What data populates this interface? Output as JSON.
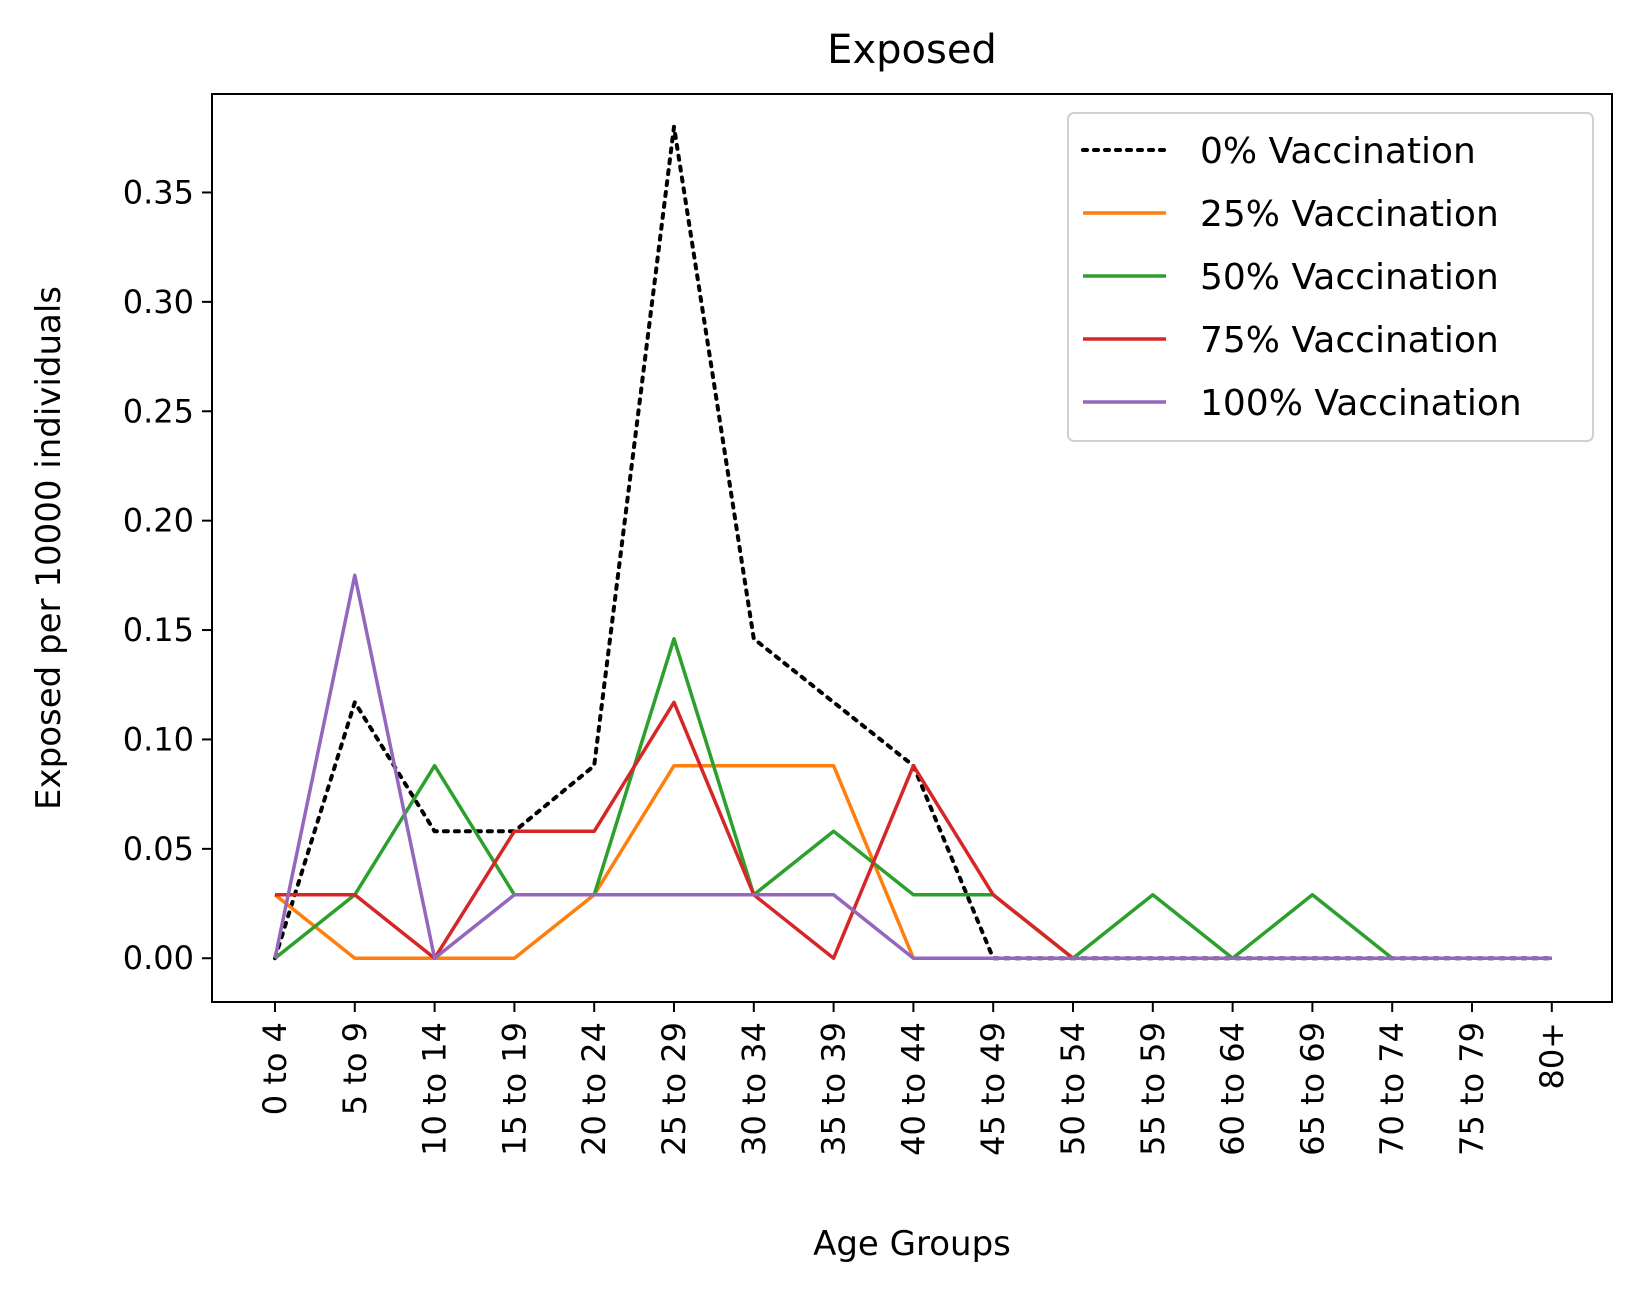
{
  "chart_data": {
    "type": "line",
    "title": "Exposed",
    "xlabel": "Age Groups",
    "ylabel": "Exposed per 10000 individuals",
    "categories": [
      "0 to 4",
      "5 to 9",
      "10 to 14",
      "15 to 19",
      "20 to 24",
      "25 to 29",
      "30 to 34",
      "35 to 39",
      "40 to 44",
      "45 to 49",
      "50 to 54",
      "55 to 59",
      "60 to 64",
      "65 to 69",
      "70 to 74",
      "75 to 79",
      "80+"
    ],
    "ylim": [
      -0.02,
      0.395
    ],
    "yticks": [
      0.0,
      0.05,
      0.1,
      0.15,
      0.2,
      0.25,
      0.3,
      0.35
    ],
    "ytick_labels": [
      "0.00",
      "0.05",
      "0.10",
      "0.15",
      "0.20",
      "0.25",
      "0.30",
      "0.35"
    ],
    "grid": false,
    "legend_position": "top-right",
    "series": [
      {
        "name": "0% Vaccination",
        "color": "#000000",
        "style": "dotted",
        "values": [
          0.0,
          0.117,
          0.058,
          0.058,
          0.088,
          0.38,
          0.146,
          0.117,
          0.088,
          0.0,
          0.0,
          0.0,
          0.0,
          0.0,
          0.0,
          0.0,
          0.0
        ]
      },
      {
        "name": "25% Vaccination",
        "color": "#ff7f0e",
        "style": "solid",
        "values": [
          0.029,
          0.0,
          0.0,
          0.0,
          0.029,
          0.088,
          0.088,
          0.088,
          0.0,
          0.0,
          0.0,
          0.0,
          0.0,
          0.0,
          0.0,
          0.0,
          0.0
        ]
      },
      {
        "name": "50% Vaccination",
        "color": "#2ca02c",
        "style": "solid",
        "values": [
          0.0,
          0.029,
          0.088,
          0.029,
          0.029,
          0.146,
          0.029,
          0.058,
          0.029,
          0.029,
          0.0,
          0.029,
          0.0,
          0.029,
          0.0,
          0.0,
          0.0
        ]
      },
      {
        "name": "75% Vaccination",
        "color": "#d62728",
        "style": "solid",
        "values": [
          0.029,
          0.029,
          0.0,
          0.058,
          0.058,
          0.117,
          0.029,
          0.0,
          0.088,
          0.029,
          0.0,
          0.0,
          0.0,
          0.0,
          0.0,
          0.0,
          0.0
        ]
      },
      {
        "name": "100% Vaccination",
        "color": "#9467bd",
        "style": "solid",
        "values": [
          0.0,
          0.175,
          0.0,
          0.029,
          0.029,
          0.029,
          0.029,
          0.029,
          0.0,
          0.0,
          0.0,
          0.0,
          0.0,
          0.0,
          0.0,
          0.0,
          0.0
        ]
      }
    ]
  }
}
